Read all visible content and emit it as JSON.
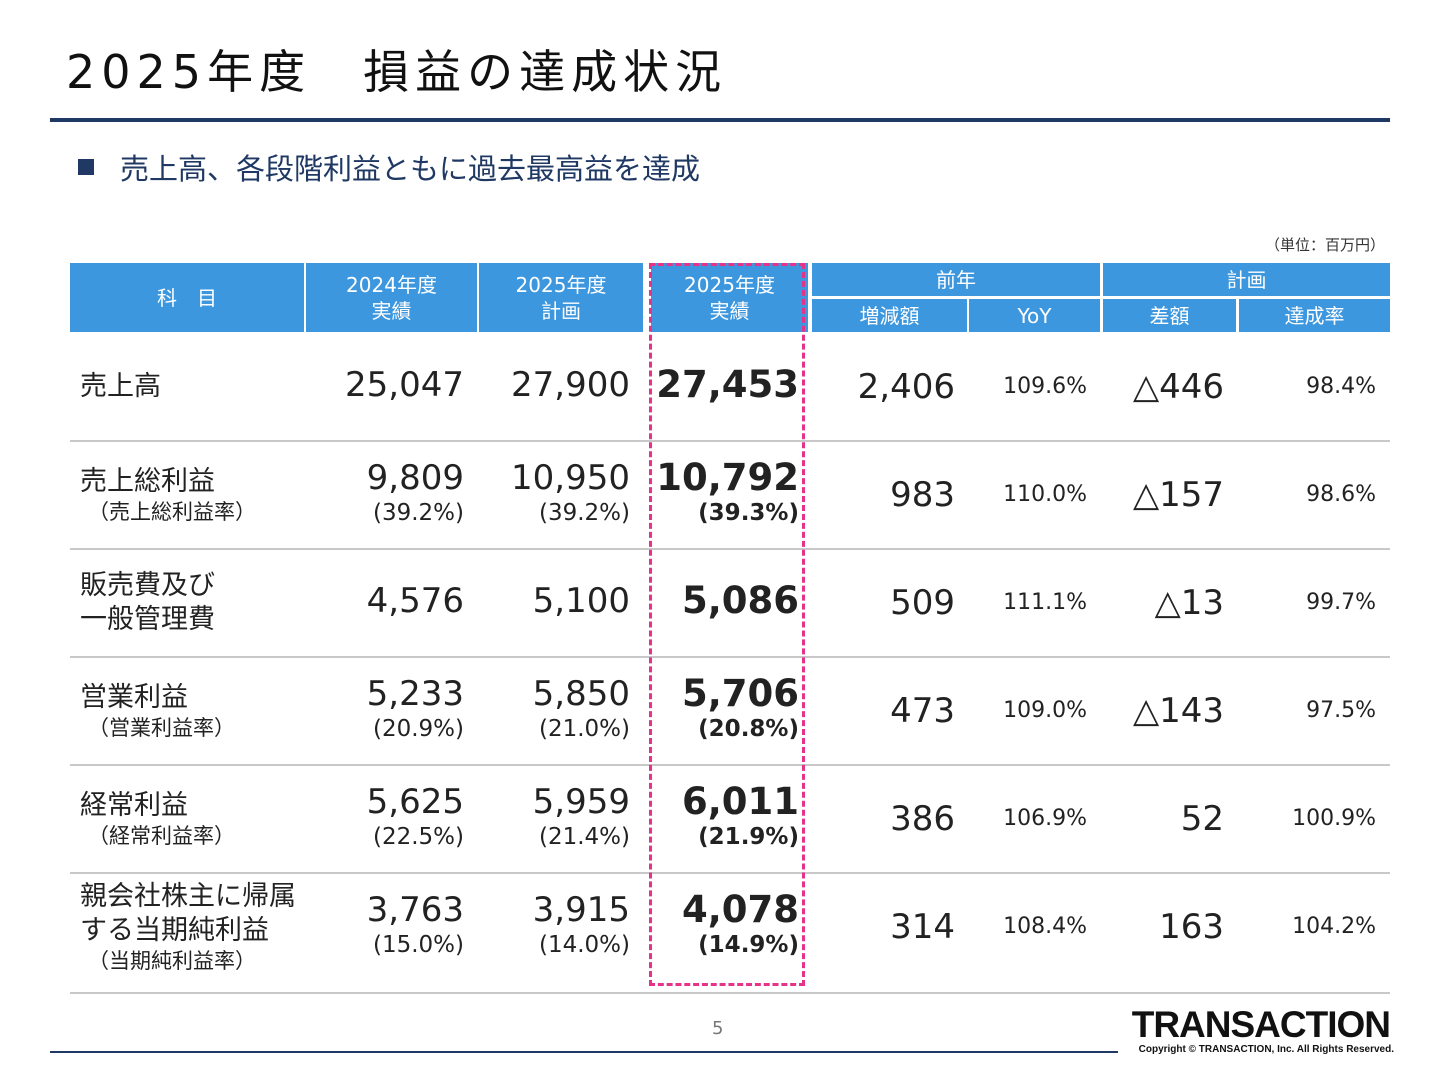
{
  "title": "2025年度　損益の達成状況",
  "bullet": "売上高、各段階利益ともに過去最高益を達成",
  "unit": "（単位：百万円）",
  "header": {
    "subject": "科　目",
    "fy2024_actual": [
      "2024年度",
      "実績"
    ],
    "fy2025_plan": [
      "2025年度",
      "計画"
    ],
    "fy2025_actual": [
      "2025年度",
      "実績"
    ],
    "prev_year": "前年",
    "change": "増減額",
    "yoy": "YoY",
    "plan": "計画",
    "diff": "差額",
    "achievement": "達成率"
  },
  "rows": [
    {
      "label_lines": [
        "売上高"
      ],
      "sub": "",
      "fy2024": {
        "value": "25,047",
        "pct": ""
      },
      "plan": {
        "value": "27,900",
        "pct": ""
      },
      "actual": {
        "value": "27,453",
        "pct": ""
      },
      "change": "2,406",
      "yoy": "109.6%",
      "diff": "△446",
      "achievement": "98.4%"
    },
    {
      "label_lines": [
        "売上総利益"
      ],
      "sub": "（売上総利益率）",
      "fy2024": {
        "value": "9,809",
        "pct": "(39.2%)"
      },
      "plan": {
        "value": "10,950",
        "pct": "(39.2%)"
      },
      "actual": {
        "value": "10,792",
        "pct": "(39.3%)"
      },
      "change": "983",
      "yoy": "110.0%",
      "diff": "△157",
      "achievement": "98.6%"
    },
    {
      "label_lines": [
        "販売費及び",
        "一般管理費"
      ],
      "sub": "",
      "fy2024": {
        "value": "4,576",
        "pct": ""
      },
      "plan": {
        "value": "5,100",
        "pct": ""
      },
      "actual": {
        "value": "5,086",
        "pct": ""
      },
      "change": "509",
      "yoy": "111.1%",
      "diff": "△13",
      "achievement": "99.7%"
    },
    {
      "label_lines": [
        "営業利益"
      ],
      "sub": "（営業利益率）",
      "fy2024": {
        "value": "5,233",
        "pct": "(20.9%)"
      },
      "plan": {
        "value": "5,850",
        "pct": "(21.0%)"
      },
      "actual": {
        "value": "5,706",
        "pct": "(20.8%)"
      },
      "change": "473",
      "yoy": "109.0%",
      "diff": "△143",
      "achievement": "97.5%"
    },
    {
      "label_lines": [
        "経常利益"
      ],
      "sub": "（経常利益率）",
      "fy2024": {
        "value": "5,625",
        "pct": "(22.5%)"
      },
      "plan": {
        "value": "5,959",
        "pct": "(21.4%)"
      },
      "actual": {
        "value": "6,011",
        "pct": "(21.9%)"
      },
      "change": "386",
      "yoy": "106.9%",
      "diff": "52",
      "achievement": "100.9%"
    },
    {
      "label_lines": [
        "親会社株主に帰属",
        "する当期純利益"
      ],
      "sub": "（当期純利益率）",
      "fy2024": {
        "value": "3,763",
        "pct": "(15.0%)"
      },
      "plan": {
        "value": "3,915",
        "pct": "(14.0%)"
      },
      "actual": {
        "value": "4,078",
        "pct": "(14.9%)"
      },
      "change": "314",
      "yoy": "108.4%",
      "diff": "163",
      "achievement": "104.2%"
    }
  ],
  "page_number": "5",
  "logo_text": "TRANSACTION",
  "copyright": "Copyright © TRANSACTION, Inc. All Rights Reserved.",
  "colors": {
    "header_bg": "#3d97de",
    "navy": "#1f3864",
    "highlight_border": "#e6338a"
  }
}
